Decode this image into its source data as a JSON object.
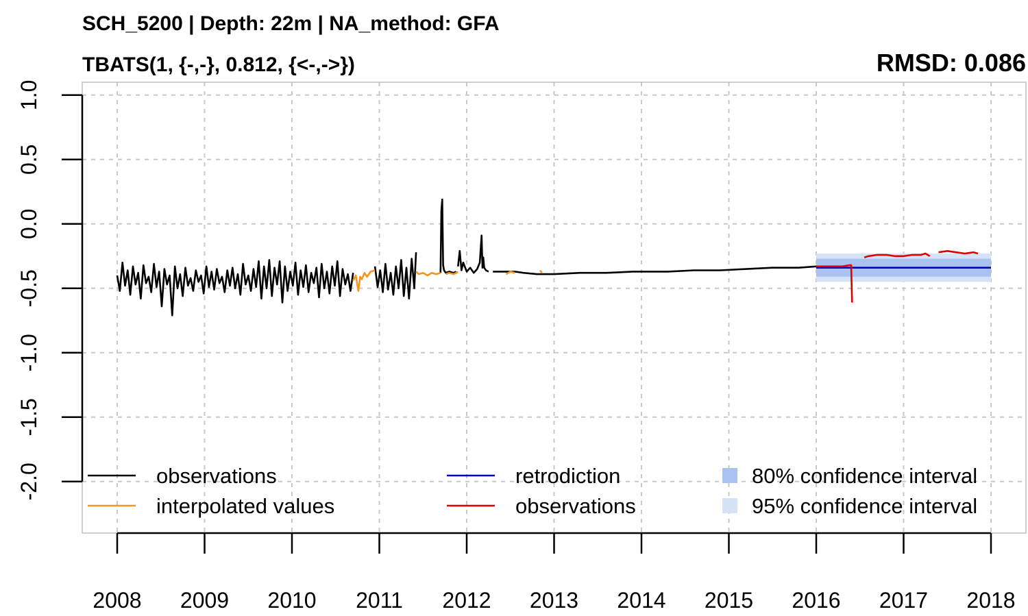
{
  "chart_data": {
    "type": "line",
    "title": "SCH_5200 | Depth: 22m | NA_method: GFA",
    "subtitle": "TBATS(1, {-,-}, 0.812, {<-,->})",
    "metric": "RMSD: 0.086",
    "xlabel": "",
    "ylabel": "",
    "xlim": [
      2007.6,
      2018.4
    ],
    "ylim": [
      -2.4,
      1.1
    ],
    "x_ticks": [
      "2008",
      "2009",
      "2010",
      "2011",
      "2012",
      "2013",
      "2014",
      "2015",
      "2016",
      "2017",
      "2018"
    ],
    "y_ticks": [
      "1.0",
      "0.5",
      "0.0",
      "-0.5",
      "-1.0",
      "-1.5",
      "-2.0"
    ],
    "y_tick_values": [
      1.0,
      0.5,
      0.0,
      -0.5,
      -1.0,
      -1.5,
      -2.0
    ],
    "grid": true,
    "legend_position": "bottom",
    "series": [
      {
        "name": "observations",
        "color": "#000000",
        "segments": [
          {
            "x": [
              2008.0,
              2008.03,
              2008.06,
              2008.09,
              2008.12,
              2008.15,
              2008.18,
              2008.21,
              2008.24,
              2008.27,
              2008.3,
              2008.33,
              2008.36,
              2008.39,
              2008.42,
              2008.45,
              2008.48,
              2008.51,
              2008.54,
              2008.57,
              2008.6,
              2008.63,
              2008.66,
              2008.69,
              2008.72,
              2008.75,
              2008.78,
              2008.81,
              2008.84,
              2008.87,
              2008.9,
              2008.93,
              2008.96,
              2008.99,
              2009.02,
              2009.05,
              2009.08,
              2009.11,
              2009.14,
              2009.17,
              2009.2,
              2009.23,
              2009.26,
              2009.29,
              2009.32,
              2009.35,
              2009.38,
              2009.41,
              2009.44,
              2009.47,
              2009.5,
              2009.53,
              2009.56,
              2009.59,
              2009.62,
              2009.65,
              2009.68,
              2009.71,
              2009.74,
              2009.77,
              2009.8,
              2009.83,
              2009.86,
              2009.89,
              2009.92,
              2009.95,
              2009.98,
              2010.01,
              2010.04,
              2010.07,
              2010.1,
              2010.13,
              2010.16,
              2010.19,
              2010.22,
              2010.25,
              2010.28,
              2010.31,
              2010.34,
              2010.37,
              2010.4,
              2010.43,
              2010.46,
              2010.49,
              2010.52,
              2010.55,
              2010.58,
              2010.61,
              2010.64,
              2010.67,
              2010.7
            ],
            "y": [
              -0.4,
              -0.52,
              -0.3,
              -0.48,
              -0.36,
              -0.55,
              -0.33,
              -0.47,
              -0.38,
              -0.58,
              -0.32,
              -0.46,
              -0.41,
              -0.53,
              -0.31,
              -0.49,
              -0.37,
              -0.64,
              -0.35,
              -0.47,
              -0.4,
              -0.71,
              -0.33,
              -0.5,
              -0.39,
              -0.56,
              -0.34,
              -0.48,
              -0.42,
              -0.52,
              -0.36,
              -0.45,
              -0.4,
              -0.54,
              -0.33,
              -0.49,
              -0.37,
              -0.51,
              -0.35,
              -0.46,
              -0.41,
              -0.53,
              -0.36,
              -0.48,
              -0.34,
              -0.5,
              -0.39,
              -0.55,
              -0.31,
              -0.47,
              -0.4,
              -0.52,
              -0.35,
              -0.49,
              -0.29,
              -0.58,
              -0.33,
              -0.5,
              -0.28,
              -0.56,
              -0.34,
              -0.47,
              -0.29,
              -0.61,
              -0.33,
              -0.52,
              -0.37,
              -0.48,
              -0.3,
              -0.55,
              -0.36,
              -0.49,
              -0.32,
              -0.53,
              -0.38,
              -0.46,
              -0.34,
              -0.57,
              -0.31,
              -0.5,
              -0.37,
              -0.54,
              -0.33,
              -0.48,
              -0.29,
              -0.56,
              -0.35,
              -0.47,
              -0.39,
              -0.52,
              -0.38
            ]
          },
          {
            "x": [
              2010.95,
              2010.98,
              2011.01,
              2011.04,
              2011.07,
              2011.1,
              2011.13,
              2011.16,
              2011.19,
              2011.22,
              2011.25,
              2011.28,
              2011.31,
              2011.34,
              2011.37,
              2011.4,
              2011.42
            ],
            "y": [
              -0.33,
              -0.49,
              -0.36,
              -0.53,
              -0.31,
              -0.51,
              -0.38,
              -0.55,
              -0.33,
              -0.5,
              -0.28,
              -0.56,
              -0.34,
              -0.58,
              -0.27,
              -0.5,
              -0.22
            ]
          },
          {
            "x": [
              2011.7,
              2011.71,
              2011.72,
              2011.73,
              2011.74,
              2011.76,
              2011.8,
              2011.85,
              2011.88
            ],
            "y": [
              -0.38,
              0.1,
              0.19,
              -0.32,
              -0.36,
              -0.38,
              -0.37,
              -0.38,
              -0.37
            ]
          },
          {
            "x": [
              2011.9,
              2011.92,
              2011.94,
              2011.96,
              2012.0,
              2012.04,
              2012.08,
              2012.12,
              2012.15,
              2012.17,
              2012.18,
              2012.19,
              2012.2,
              2012.22,
              2012.25
            ],
            "y": [
              -0.33,
              -0.21,
              -0.36,
              -0.3,
              -0.37,
              -0.34,
              -0.38,
              -0.35,
              -0.3,
              -0.09,
              -0.34,
              -0.26,
              -0.34,
              -0.36,
              -0.37
            ]
          },
          {
            "x": [
              2012.3,
              2012.45,
              2012.55,
              2012.65,
              2012.8,
              2013.0,
              2013.3,
              2013.6,
              2013.9,
              2014.0,
              2014.3,
              2014.6,
              2014.9,
              2015.2,
              2015.5,
              2015.8,
              2016.0
            ],
            "y": [
              -0.37,
              -0.37,
              -0.37,
              -0.38,
              -0.39,
              -0.39,
              -0.38,
              -0.38,
              -0.37,
              -0.37,
              -0.37,
              -0.36,
              -0.36,
              -0.35,
              -0.34,
              -0.34,
              -0.33
            ]
          }
        ]
      },
      {
        "name": "interpolated values",
        "color": "#f7941d",
        "segments": [
          {
            "x": [
              2010.7,
              2010.73,
              2010.76,
              2010.78,
              2010.8,
              2010.83,
              2010.86,
              2010.9,
              2010.95
            ],
            "y": [
              -0.44,
              -0.4,
              -0.52,
              -0.41,
              -0.43,
              -0.38,
              -0.41,
              -0.37,
              -0.36
            ]
          },
          {
            "x": [
              2011.42,
              2011.45,
              2011.5,
              2011.55,
              2011.6,
              2011.65,
              2011.7
            ],
            "y": [
              -0.37,
              -0.39,
              -0.38,
              -0.4,
              -0.38,
              -0.39,
              -0.38
            ]
          },
          {
            "x": [
              2011.76,
              2011.8,
              2011.85,
              2011.88,
              2011.9
            ],
            "y": [
              -0.39,
              -0.38,
              -0.39,
              -0.38,
              -0.37
            ]
          },
          {
            "x": [
              2012.45,
              2012.5,
              2012.55
            ],
            "y": [
              -0.39,
              -0.37,
              -0.38
            ]
          },
          {
            "x": [
              2012.84,
              2012.86
            ],
            "y": [
              -0.36,
              -0.38
            ]
          }
        ]
      },
      {
        "name": "retrodiction",
        "color": "#0000cc",
        "segments": [
          {
            "x": [
              2016.0,
              2018.0
            ],
            "y": [
              -0.34,
              -0.34
            ]
          }
        ]
      },
      {
        "name": "observations",
        "color": "#dd0000",
        "segments": [
          {
            "x": [
              2016.0,
              2016.1,
              2016.2,
              2016.3,
              2016.38,
              2016.4,
              2016.41
            ],
            "y": [
              -0.33,
              -0.33,
              -0.33,
              -0.33,
              -0.32,
              -0.32,
              -0.61
            ]
          },
          {
            "x": [
              2016.55,
              2016.6,
              2016.7,
              2016.8,
              2016.9,
              2017.0,
              2017.1,
              2017.2,
              2017.25,
              2017.3
            ],
            "y": [
              -0.26,
              -0.25,
              -0.24,
              -0.24,
              -0.25,
              -0.25,
              -0.24,
              -0.24,
              -0.23,
              -0.25
            ]
          },
          {
            "x": [
              2017.4,
              2017.5,
              2017.6,
              2017.7,
              2017.8,
              2017.85
            ],
            "y": [
              -0.22,
              -0.21,
              -0.22,
              -0.23,
              -0.22,
              -0.23
            ]
          }
        ]
      }
    ],
    "intervals": [
      {
        "name": "80% confidence interval",
        "color": "#a9c2ef",
        "x": [
          2016.0,
          2018.0
        ],
        "lower": -0.41,
        "upper": -0.27
      },
      {
        "name": "95% confidence interval",
        "color": "#d5e2f8",
        "x": [
          2016.0,
          2018.0
        ],
        "lower": -0.45,
        "upper": -0.23
      }
    ],
    "legend": [
      {
        "label": "observations",
        "kind": "line",
        "color": "#000000"
      },
      {
        "label": "interpolated values",
        "kind": "line",
        "color": "#f7941d"
      },
      {
        "label": "retrodiction",
        "kind": "line",
        "color": "#0000cc"
      },
      {
        "label": "observations",
        "kind": "line",
        "color": "#dd0000"
      },
      {
        "label": "80% confidence interval",
        "kind": "box",
        "color": "#a9c2ef"
      },
      {
        "label": "95% confidence interval",
        "kind": "box",
        "color": "#d5e2f8"
      }
    ]
  }
}
